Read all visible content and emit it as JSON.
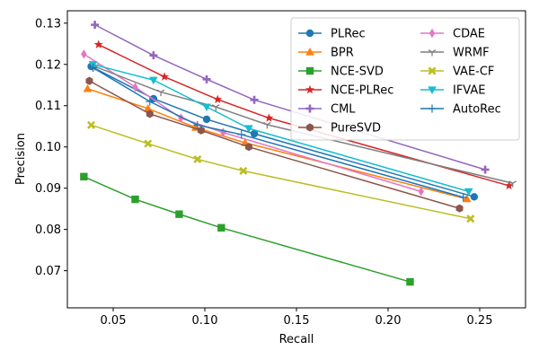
{
  "chart_data": {
    "type": "line",
    "title": "",
    "xlabel": "Recall",
    "ylabel": "Precision",
    "xlim": [
      0.025,
      0.275
    ],
    "ylim": [
      0.061,
      0.133
    ],
    "xticks": [
      0.05,
      0.1,
      0.15,
      0.2,
      0.25
    ],
    "xtick_labels": [
      "0.05",
      "0.10",
      "0.15",
      "0.20",
      "0.25"
    ],
    "yticks": [
      0.07,
      0.08,
      0.09,
      0.1,
      0.11,
      0.12,
      0.13
    ],
    "ytick_labels": [
      "0.07",
      "0.08",
      "0.09",
      "0.10",
      "0.11",
      "0.12",
      "0.13"
    ],
    "grid": false,
    "legend_position": "top-right",
    "legend_columns": 2,
    "series": [
      {
        "name": "PLRec",
        "color": "#1f77b4",
        "marker": "circle",
        "x": [
          0.038,
          0.072,
          0.101,
          0.127,
          0.247
        ],
        "y": [
          0.1195,
          0.1117,
          0.1067,
          0.1032,
          0.0879
        ]
      },
      {
        "name": "BPR",
        "color": "#ff7f0e",
        "marker": "triangle-up",
        "x": [
          0.036,
          0.069,
          0.095,
          0.122,
          0.243
        ],
        "y": [
          0.1141,
          0.1093,
          0.1047,
          0.101,
          0.0874
        ]
      },
      {
        "name": "NCE-SVD",
        "color": "#2ca02c",
        "marker": "square",
        "x": [
          0.034,
          0.062,
          0.086,
          0.109,
          0.212
        ],
        "y": [
          0.0928,
          0.0873,
          0.0837,
          0.0804,
          0.0673
        ]
      },
      {
        "name": "NCE-PLRec",
        "color": "#d62728",
        "marker": "star",
        "x": [
          0.042,
          0.078,
          0.107,
          0.135,
          0.266
        ],
        "y": [
          0.1248,
          0.117,
          0.1115,
          0.107,
          0.0906
        ]
      },
      {
        "name": "CML",
        "color": "#9467bd",
        "marker": "plus",
        "x": [
          0.04,
          0.072,
          0.101,
          0.127,
          0.253
        ],
        "y": [
          0.1296,
          0.1222,
          0.1164,
          0.1114,
          0.0945
        ]
      },
      {
        "name": "PureSVD",
        "color": "#8c564b",
        "marker": "hexagon",
        "x": [
          0.037,
          0.07,
          0.098,
          0.124,
          0.239
        ],
        "y": [
          0.116,
          0.108,
          0.104,
          0.1,
          0.0851
        ]
      },
      {
        "name": "CDAE",
        "color": "#e377c2",
        "marker": "thin-diamond",
        "x": [
          0.034,
          0.062,
          0.087,
          0.11,
          0.218
        ],
        "y": [
          0.1225,
          0.1145,
          0.107,
          0.1035,
          0.0892
        ]
      },
      {
        "name": "WRMF",
        "color": "#7f7f7f",
        "marker": "tri-down",
        "x": [
          0.04,
          0.076,
          0.106,
          0.134,
          0.268
        ],
        "y": [
          0.1195,
          0.1133,
          0.1097,
          0.1054,
          0.0912
        ]
      },
      {
        "name": "VAE-CF",
        "color": "#bcbd22",
        "marker": "x",
        "x": [
          0.038,
          0.069,
          0.096,
          0.121,
          0.245
        ],
        "y": [
          0.1053,
          0.1008,
          0.097,
          0.0942,
          0.0826
        ]
      },
      {
        "name": "IFVAE",
        "color": "#17becf",
        "marker": "triangle-down",
        "x": [
          0.039,
          0.072,
          0.101,
          0.124,
          0.244
        ],
        "y": [
          0.12,
          0.1162,
          0.1097,
          0.1045,
          0.0892
        ]
      },
      {
        "name": "AutoRec",
        "color": "#1f77b4",
        "marker": "plus-thin",
        "x": [
          0.039,
          0.07,
          0.096,
          0.12,
          0.241
        ],
        "y": [
          0.1192,
          0.111,
          0.1053,
          0.103,
          0.0878
        ]
      }
    ]
  }
}
